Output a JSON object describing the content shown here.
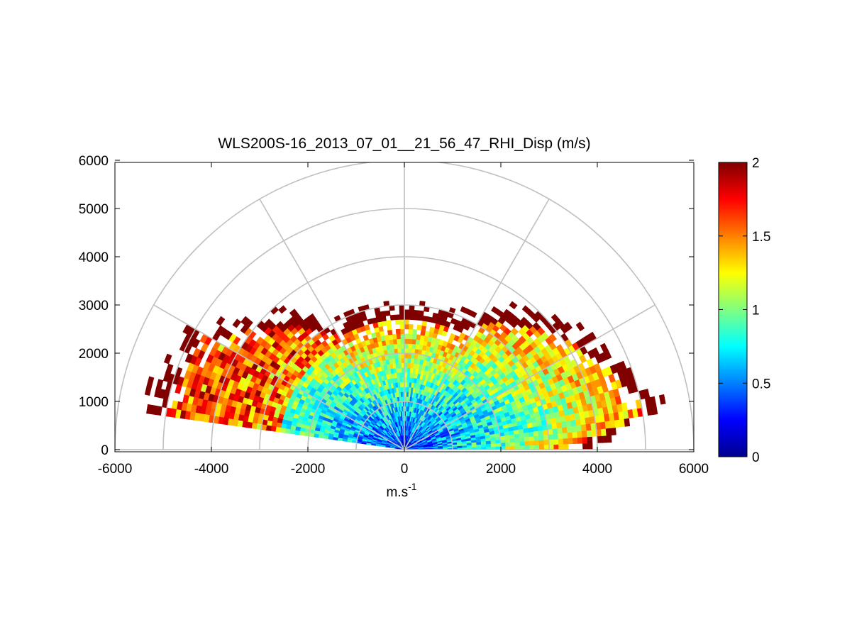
{
  "chart_data": {
    "type": "heatmap",
    "subtype": "polar-rhi-sector",
    "title": "WLS200S-16_2013_07_01__21_56_47_RHI_Disp (m/s)",
    "xlabel_base": "m.s",
    "xlabel_exponent": "-1",
    "ylabel": "",
    "xlim": [
      -6000,
      6000
    ],
    "ylim": [
      0,
      6000
    ],
    "x_ticks": [
      -6000,
      -4000,
      -2000,
      0,
      2000,
      4000,
      6000
    ],
    "x_tick_labels": [
      "-6000",
      "-4000",
      "-2000",
      "0",
      "2000",
      "4000",
      "6000"
    ],
    "y_ticks": [
      0,
      1000,
      2000,
      3000,
      4000,
      5000,
      6000
    ],
    "y_tick_labels": [
      "0",
      "1000",
      "2000",
      "3000",
      "4000",
      "5000",
      "6000"
    ],
    "polar_grid": {
      "rings": [
        1000,
        2000,
        3000,
        4000,
        5000,
        6000
      ],
      "spokes_deg": [
        0,
        30,
        60,
        90,
        120,
        150,
        180
      ],
      "color": "#c0c0c0"
    },
    "colorbar": {
      "colormap": "jet",
      "clim": [
        0,
        2
      ],
      "ticks": [
        0,
        0.5,
        1,
        1.5,
        2
      ],
      "tick_labels": [
        "0",
        "0.5",
        "1",
        "1.5",
        "2"
      ]
    },
    "data_extent": {
      "range_max_m": 5900,
      "range_step_m": 100,
      "azimuth_min_deg": 0,
      "azimuth_max_deg": 172
    }
  }
}
